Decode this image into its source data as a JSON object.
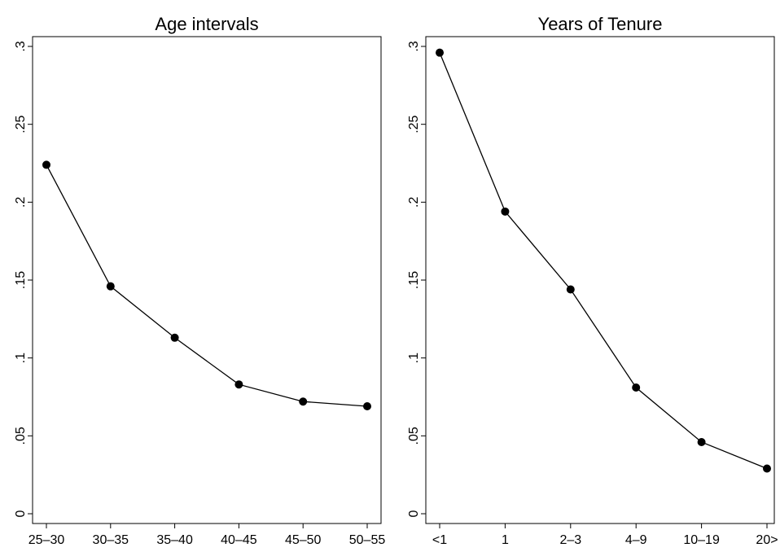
{
  "chart_data": [
    {
      "type": "line",
      "title": "Age intervals",
      "xlabel": "",
      "ylabel": "",
      "categories": [
        "25–30",
        "30–35",
        "35–40",
        "40–45",
        "45–50",
        "50–55"
      ],
      "values": [
        0.224,
        0.146,
        0.113,
        0.083,
        0.072,
        0.069
      ],
      "ylim": [
        0,
        0.3
      ],
      "yticks": [
        0,
        0.05,
        0.1,
        0.15,
        0.2,
        0.25,
        0.3
      ],
      "ytick_labels": [
        "0",
        ".05",
        ".1",
        ".15",
        ".2",
        ".25",
        ".3"
      ],
      "grid": false,
      "marker": "circle",
      "line_color": "#000000"
    },
    {
      "type": "line",
      "title": "Years of Tenure",
      "xlabel": "",
      "ylabel": "",
      "categories": [
        "<1",
        "1",
        "2–3",
        "4–9",
        "10–19",
        "20>"
      ],
      "values": [
        0.296,
        0.194,
        0.144,
        0.081,
        0.046,
        0.029
      ],
      "ylim": [
        0,
        0.3
      ],
      "yticks": [
        0,
        0.05,
        0.1,
        0.15,
        0.2,
        0.25,
        0.3
      ],
      "ytick_labels": [
        "0",
        ".05",
        ".1",
        ".15",
        ".2",
        ".25",
        ".3"
      ],
      "grid": false,
      "marker": "circle",
      "line_color": "#000000"
    }
  ]
}
